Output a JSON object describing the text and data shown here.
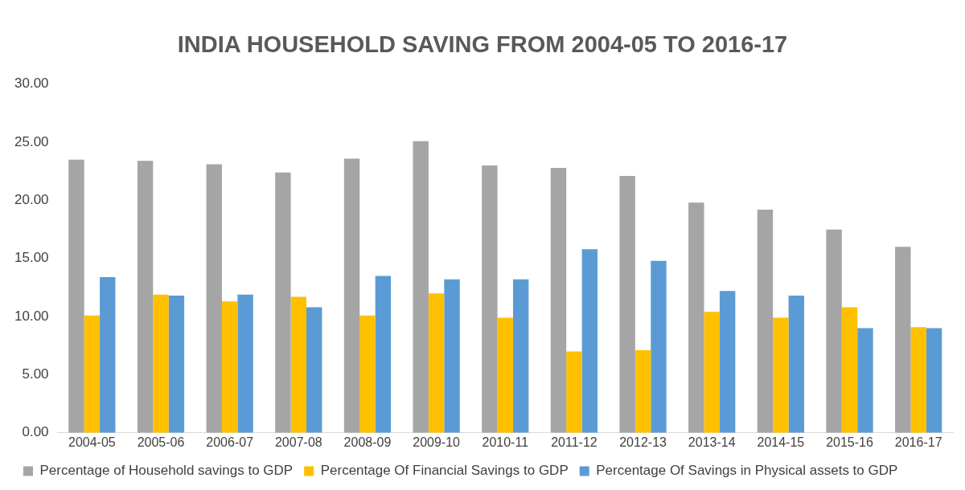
{
  "chart_data": {
    "type": "bar",
    "title": "INDIA HOUSEHOLD SAVING FROM 2004-05 TO 2016-17",
    "categories": [
      "2004-05",
      "2005-06",
      "2006-07",
      "2007-08",
      "2008-09",
      "2009-10",
      "2010-11",
      "2011-12",
      "2012-13",
      "2013-14",
      "2014-15",
      "2015-16",
      "2016-17"
    ],
    "series": [
      {
        "name": "Percentage of Household savings to GDP",
        "color": "#a5a5a5",
        "values": [
          23.5,
          23.4,
          23.1,
          22.4,
          23.6,
          25.1,
          23.0,
          22.8,
          22.1,
          19.8,
          19.2,
          17.5,
          16.0
        ]
      },
      {
        "name": "Percentage Of Financial Savings to GDP",
        "color": "#ffc000",
        "values": [
          10.1,
          11.9,
          11.3,
          11.7,
          10.1,
          12.0,
          9.9,
          7.0,
          7.1,
          10.4,
          9.9,
          10.8,
          9.1
        ]
      },
      {
        "name": "Percentage Of Savings in Physical assets to GDP",
        "color": "#5b9bd5",
        "values": [
          13.4,
          11.8,
          11.9,
          10.8,
          13.5,
          13.2,
          13.2,
          15.8,
          14.8,
          12.2,
          11.8,
          9.0,
          9.0
        ]
      }
    ],
    "ylim": [
      0,
      30
    ],
    "yticks": [
      {
        "value": 0,
        "label": "0.00"
      },
      {
        "value": 5,
        "label": "5.00"
      },
      {
        "value": 10,
        "label": "10.00"
      },
      {
        "value": 15,
        "label": "15.00"
      },
      {
        "value": 20,
        "label": "20.00"
      },
      {
        "value": 25,
        "label": "25.00"
      },
      {
        "value": 30,
        "label": "30.00"
      }
    ],
    "grid": false,
    "legend": "bottom"
  }
}
